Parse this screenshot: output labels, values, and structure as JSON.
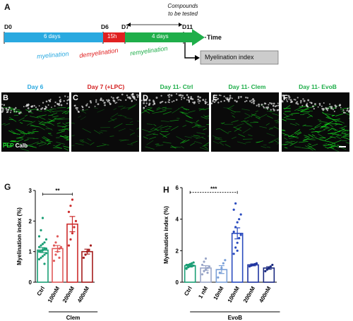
{
  "figure": {
    "panel_a": "A",
    "timeline": {
      "d0": "D0",
      "d6": "D6",
      "d7": "D7",
      "d11": "D11",
      "time": "Time",
      "seg_6days": "6 days",
      "seg_15h": "15h",
      "seg_4days": "4 days",
      "myelination": "myelination",
      "demyelination": "demyelination",
      "remyelination": "remyelination",
      "compounds_line1": "Compounds",
      "compounds_line2": "to be tested",
      "myelination_index_box": "Myelination index",
      "colors": {
        "blue": "#29a9e0",
        "red": "#e02020",
        "green": "#1fae4a",
        "gray": "#cccccc"
      }
    },
    "micrographs": [
      {
        "letter": "B",
        "title": "Day 6",
        "color": "#29a9e0"
      },
      {
        "letter": "C",
        "title": "Day 7 (+LPC)",
        "color": "#d42020"
      },
      {
        "letter": "D",
        "title": "Day 11- Ctrl",
        "color": "#1fae4a"
      },
      {
        "letter": "E",
        "title": "Day 11- Clem",
        "color": "#1fae4a"
      },
      {
        "letter": "F",
        "title": "Day 11- EvoB",
        "color": "#1fae4a"
      }
    ],
    "stain_legend": {
      "plp": "PLP",
      "calb": "Calb"
    },
    "panel_g": "G",
    "panel_h": "H"
  },
  "chart_data": [
    {
      "type": "bar",
      "panel": "G",
      "ylabel": "Myelination index (%)",
      "xlabel": "Clem",
      "categories": [
        "Ctrl",
        "100nM",
        "200nM",
        "400nM"
      ],
      "values": [
        1.05,
        1.1,
        1.9,
        1.0
      ],
      "errors": [
        0.08,
        0.1,
        0.25,
        0.08
      ],
      "colors": [
        "#1a9e75",
        "#e05a5a",
        "#cc2b2b",
        "#a51c1c"
      ],
      "ylim": [
        0,
        3
      ],
      "yticks": [
        "0",
        "1",
        "2",
        "3"
      ],
      "significance": "**",
      "points": [
        [
          0.75,
          0.8,
          0.85,
          0.9,
          0.95,
          1.0,
          1.0,
          1.05,
          1.1,
          1.1,
          1.15,
          1.2,
          1.25,
          1.3,
          1.4,
          1.5,
          1.7,
          2.1,
          0.6
        ],
        [
          0.7,
          0.9,
          1.0,
          1.1,
          1.15,
          1.2,
          1.3,
          1.5,
          0.8
        ],
        [
          1.2,
          1.4,
          1.6,
          1.8,
          2.0,
          2.3,
          2.5,
          2.7
        ],
        [
          0.8,
          0.9,
          1.0,
          1.05,
          1.2
        ]
      ]
    },
    {
      "type": "bar",
      "panel": "H",
      "ylabel": "Myelination index (%)",
      "xlabel": "EvoB",
      "categories": [
        "Ctrl",
        "1 nM",
        "10nM",
        "100nM",
        "200nM",
        "400nM"
      ],
      "values": [
        1.05,
        0.9,
        0.8,
        3.1,
        1.1,
        0.9
      ],
      "errors": [
        0.06,
        0.15,
        0.25,
        0.35,
        0.06,
        0.08
      ],
      "colors": [
        "#1a9e75",
        "#9aa6c8",
        "#7aa0d8",
        "#2a4bbf",
        "#2035a0",
        "#1a2a80"
      ],
      "ylim": [
        0,
        6
      ],
      "yticks": [
        "0",
        "2",
        "4",
        "6"
      ],
      "significance": "***",
      "points": [
        [
          0.9,
          0.95,
          1.0,
          1.0,
          1.05,
          1.1,
          1.1,
          1.15,
          1.2,
          1.25,
          0.85,
          1.0
        ],
        [
          0.5,
          0.7,
          0.8,
          0.9,
          1.0,
          1.1,
          1.3,
          1.5,
          0.6
        ],
        [
          0.3,
          0.6,
          0.9,
          1.2,
          1.4
        ],
        [
          1.8,
          2.2,
          2.5,
          2.8,
          3.0,
          3.2,
          3.5,
          3.8,
          4.0,
          4.3,
          4.6,
          5.0,
          2.0
        ],
        [
          1.0,
          1.05,
          1.1,
          1.15,
          1.2
        ],
        [
          0.7,
          0.8,
          0.9,
          1.0,
          1.1
        ]
      ]
    }
  ]
}
